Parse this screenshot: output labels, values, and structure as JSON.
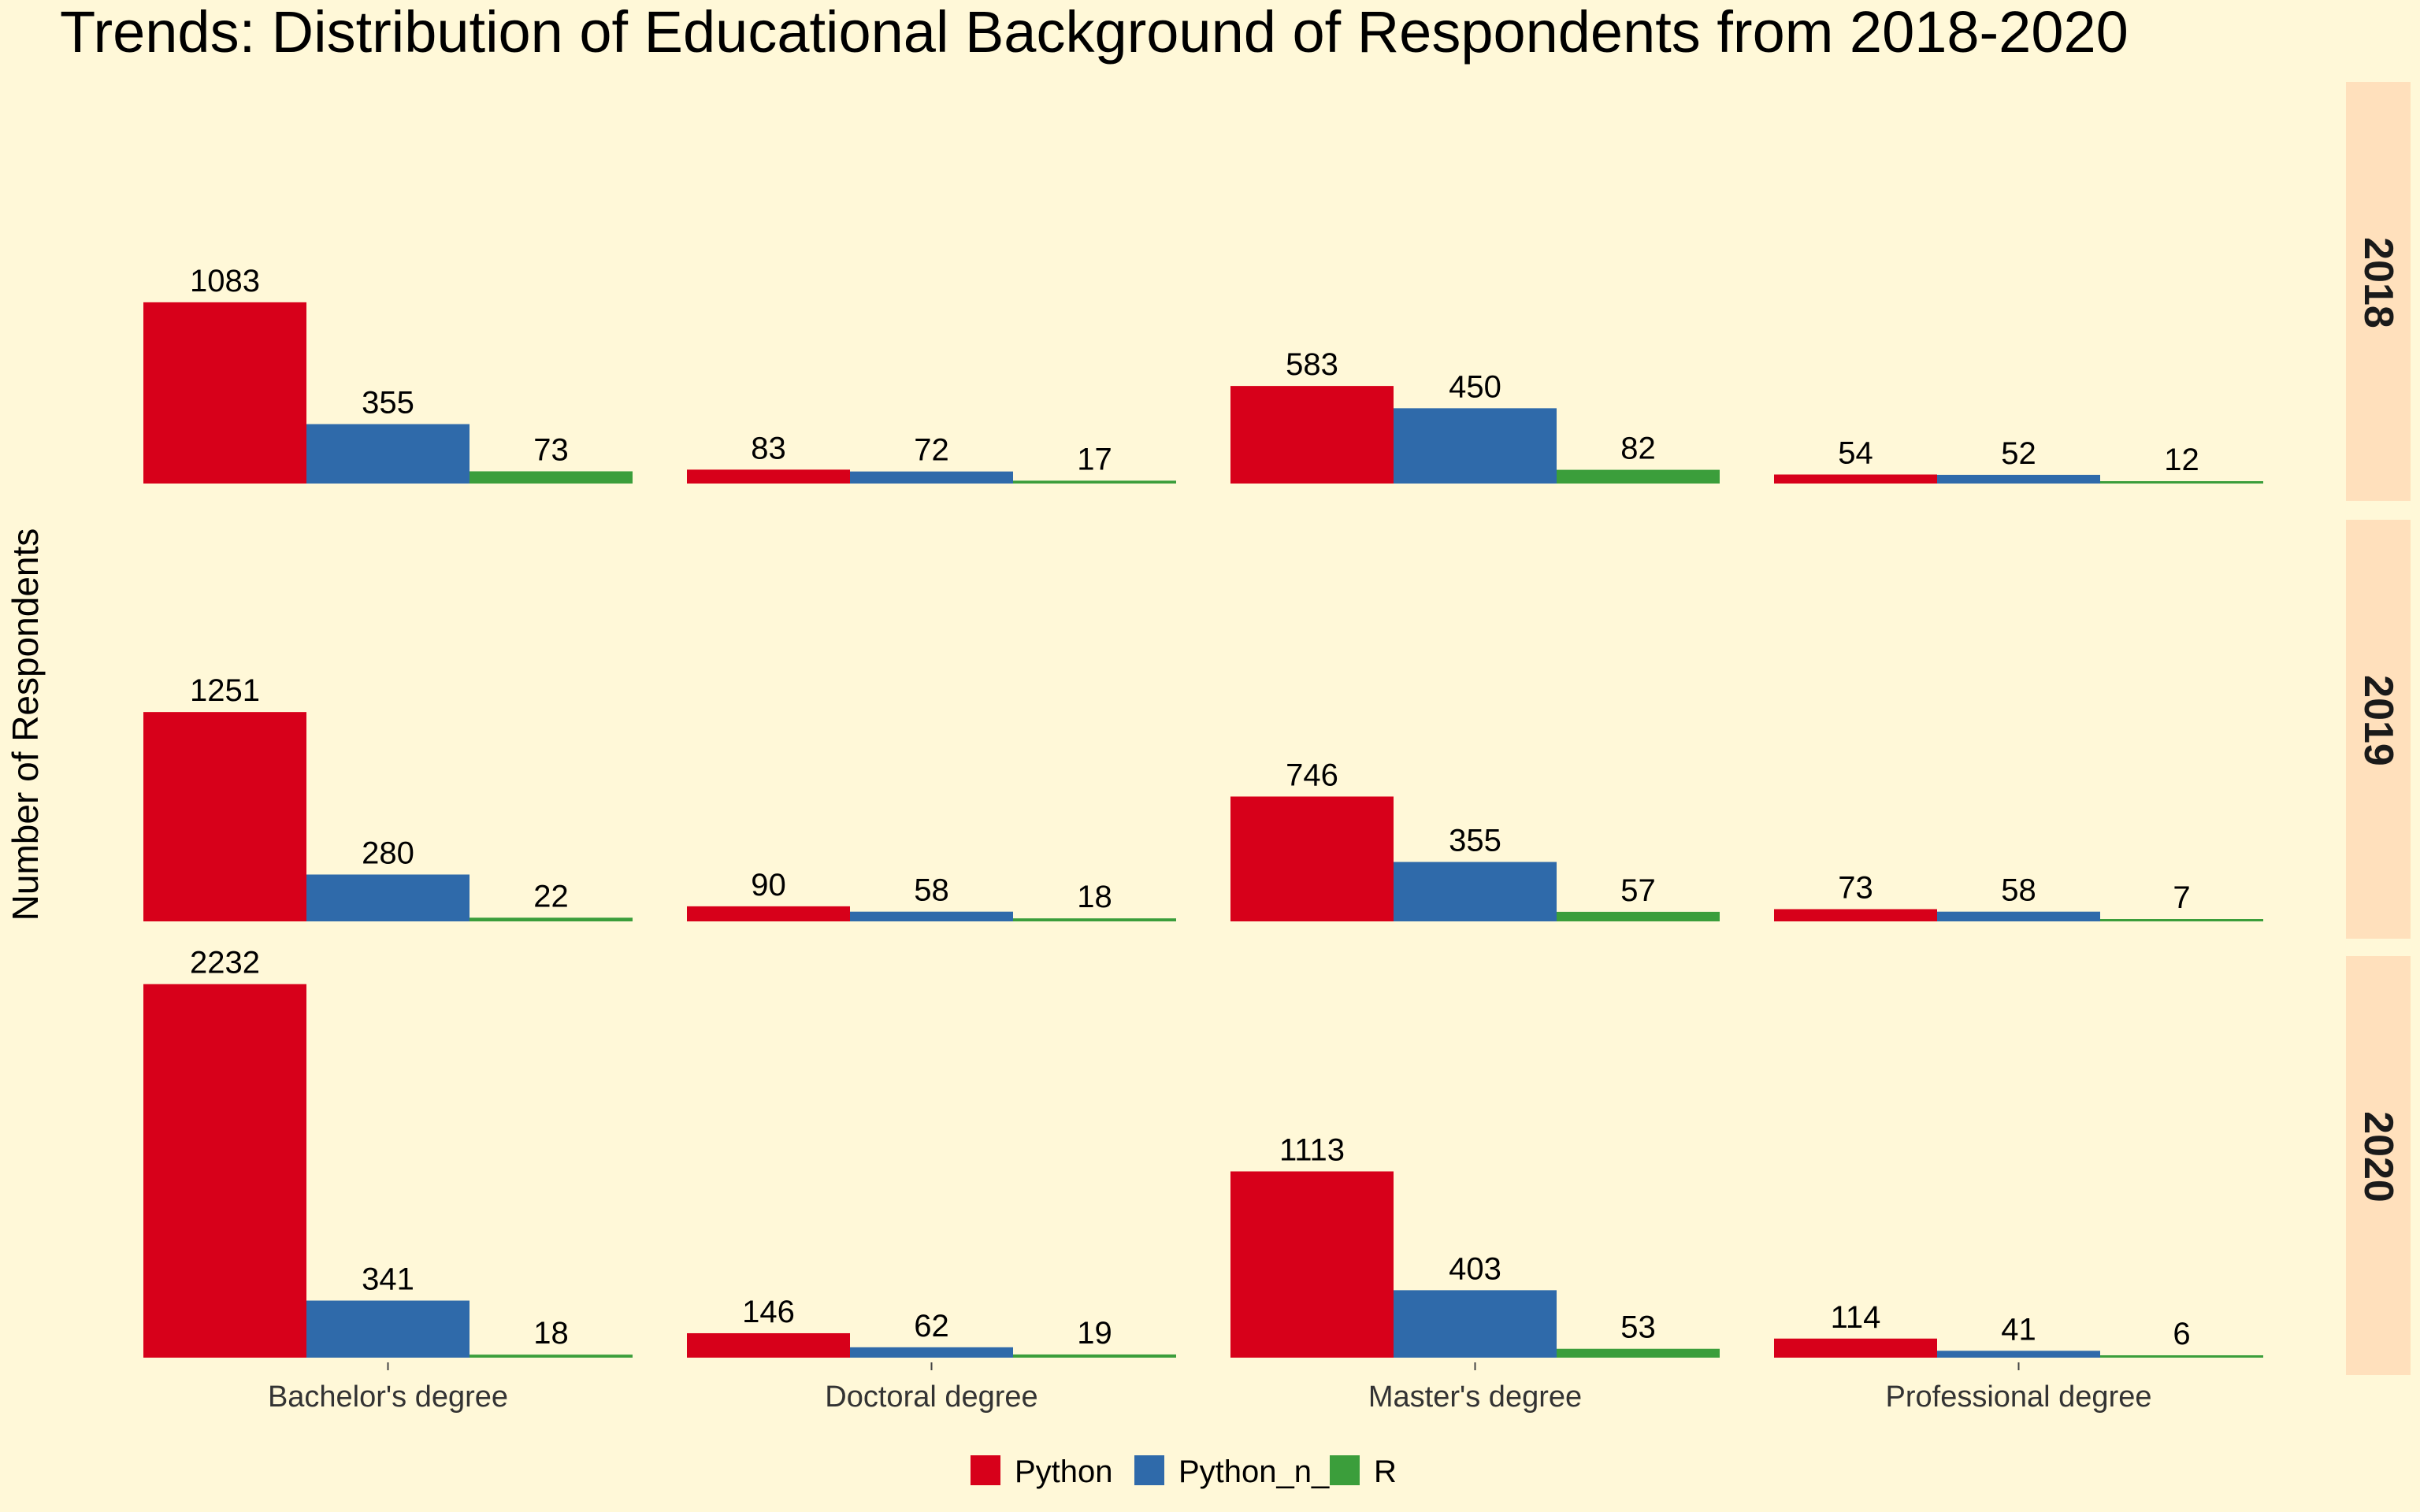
{
  "chart_data": {
    "type": "bar",
    "title": "Trends: Distribution of Educational Background of Respondents from 2018-2020",
    "ylabel": "Number of Respondents",
    "xlabel": "",
    "categories": [
      "Bachelor's degree",
      "Doctoral degree",
      "Master's degree",
      "Professional degree"
    ],
    "facets": [
      "2018",
      "2019",
      "2020"
    ],
    "series": [
      {
        "name": "Python",
        "color": "#d7001a",
        "values": {
          "2018": [
            1083,
            83,
            583,
            54
          ],
          "2019": [
            1251,
            90,
            746,
            73
          ],
          "2020": [
            2232,
            146,
            1113,
            114
          ]
        }
      },
      {
        "name": "Python_n_R",
        "color": "#2f6aaa",
        "values": {
          "2018": [
            355,
            72,
            450,
            52
          ],
          "2019": [
            280,
            58,
            355,
            58
          ],
          "2020": [
            341,
            62,
            403,
            41
          ]
        }
      },
      {
        "name": "R",
        "color": "#3b9e3b",
        "values": {
          "2018": [
            73,
            17,
            82,
            12
          ],
          "2019": [
            22,
            18,
            57,
            7
          ],
          "2020": [
            18,
            19,
            53,
            6
          ]
        }
      }
    ],
    "legend_position": "bottom",
    "grid": false,
    "background": "#fff8d8",
    "strip_color": "#ffe0bc"
  }
}
